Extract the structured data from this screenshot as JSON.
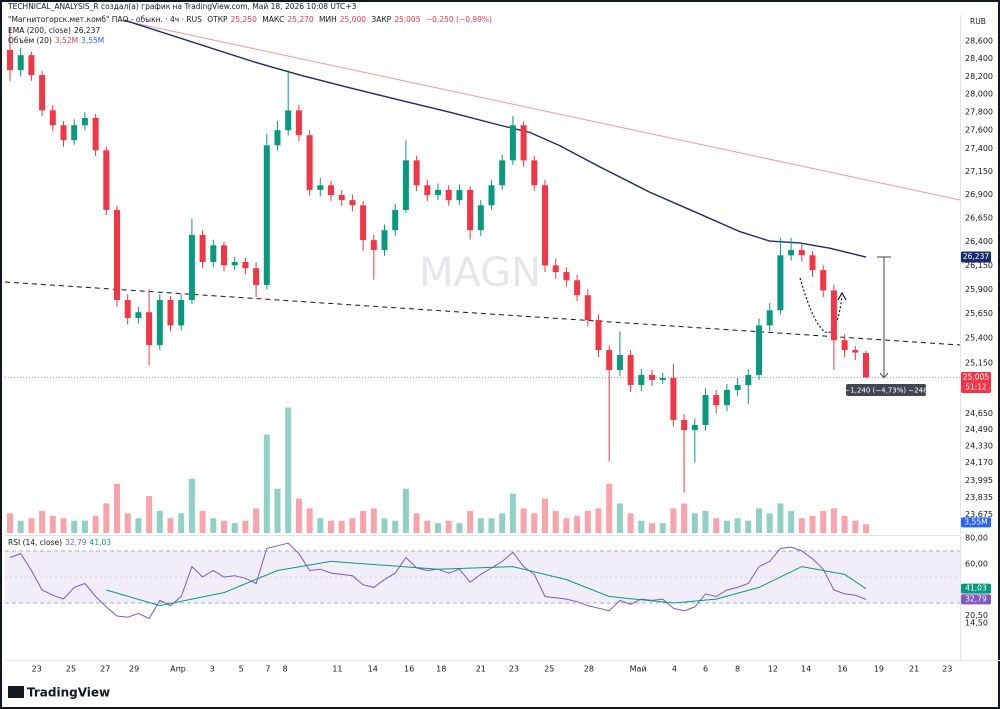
{
  "header": {
    "credit": "TECHNICAL_ANALYSIS_R создал(а) график на TradingView.com, Май 18, 2026 10:08 UTC+3",
    "symbol": "\"Магнитогорск.мет.комб\" ПАО - обыкн. · 4ч · RUS",
    "open_label": "ОТКР",
    "open": "25,250",
    "high_label": "МАКС",
    "high": "25,270",
    "low_label": "МИН",
    "low": "25,000",
    "close_label": "ЗАКР",
    "close": "25,005",
    "change": "−0,250 (−0,99%)",
    "currency": "RUB",
    "countdown": "51:12",
    "measure": "−1,240 (−4,73%) −248",
    "watermark": "MAGN",
    "logo": "TradingView"
  },
  "chart_data": {
    "type": "candlestick",
    "log_scale": true,
    "grid": false,
    "up_color": "#089981",
    "down_color": "#f23645",
    "ylim": [
      23.48,
      28.9
    ],
    "yticks": [
      {
        "value": 28.6,
        "label": "28,600"
      },
      {
        "value": 28.4,
        "label": "28,400"
      },
      {
        "value": 28.2,
        "label": "28,200"
      },
      {
        "value": 28.0,
        "label": "28,000"
      },
      {
        "value": 27.8,
        "label": "27,800"
      },
      {
        "value": 27.6,
        "label": "27,600"
      },
      {
        "value": 27.4,
        "label": "27,400"
      },
      {
        "value": 27.15,
        "label": "27,150"
      },
      {
        "value": 26.9,
        "label": "26,900"
      },
      {
        "value": 26.65,
        "label": "26,650"
      },
      {
        "value": 26.4,
        "label": "26,400"
      },
      {
        "value": 26.15,
        "label": "26,150"
      },
      {
        "value": 25.9,
        "label": "25,900"
      },
      {
        "value": 25.65,
        "label": "25,650"
      },
      {
        "value": 25.4,
        "label": "25,400"
      },
      {
        "value": 25.15,
        "label": "25,150"
      },
      {
        "value": 24.65,
        "label": "24,650"
      },
      {
        "value": 24.49,
        "label": "24,490"
      },
      {
        "value": 24.33,
        "label": "24,330"
      },
      {
        "value": 24.17,
        "label": "24,170"
      },
      {
        "value": 23.995,
        "label": "23,995"
      },
      {
        "value": 23.835,
        "label": "23,835"
      },
      {
        "value": 23.675,
        "label": "23,675"
      }
    ],
    "xticks": [
      {
        "value": 2.5,
        "label": "23"
      },
      {
        "value": 5.7,
        "label": "25"
      },
      {
        "value": 8.9,
        "label": "27"
      },
      {
        "value": 11.6,
        "label": "29"
      },
      {
        "value": 15.7,
        "label": "Апр"
      },
      {
        "value": 18.9,
        "label": "3"
      },
      {
        "value": 21.6,
        "label": "5"
      },
      {
        "value": 24.1,
        "label": "7"
      },
      {
        "value": 25.7,
        "label": "8"
      },
      {
        "value": 30.6,
        "label": "11"
      },
      {
        "value": 33.9,
        "label": "14"
      },
      {
        "value": 37.3,
        "label": "16"
      },
      {
        "value": 40.3,
        "label": "18"
      },
      {
        "value": 44,
        "label": "21"
      },
      {
        "value": 47.1,
        "label": "23"
      },
      {
        "value": 50.4,
        "label": "25"
      },
      {
        "value": 54.1,
        "label": "28"
      },
      {
        "value": 58.7,
        "label": "Май"
      },
      {
        "value": 62.1,
        "label": "4"
      },
      {
        "value": 65,
        "label": "6"
      },
      {
        "value": 68,
        "label": "8"
      },
      {
        "value": 71.3,
        "label": "12"
      },
      {
        "value": 74.4,
        "label": "14"
      },
      {
        "value": 77.8,
        "label": "16"
      },
      {
        "value": 81.2,
        "label": "19"
      },
      {
        "value": 84.5,
        "label": "21"
      },
      {
        "value": 87.6,
        "label": "23"
      }
    ],
    "ohlc": {
      "open": [
        28.5,
        28.27,
        28.44,
        28.215,
        27.82,
        27.655,
        27.49,
        27.655,
        27.735,
        27.38,
        26.735,
        25.79,
        25.605,
        25.665,
        25.33,
        25.79,
        25.53,
        25.79,
        26.47,
        26.185,
        26.36,
        26.15,
        26.185,
        26.12,
        25.945,
        27.435,
        27.6,
        27.82,
        27.545,
        26.95,
        27.0,
        26.895,
        26.84,
        26.785,
        26.415,
        26.31,
        26.52,
        26.735,
        27.27,
        27.0,
        26.895,
        26.95,
        26.84,
        26.95,
        26.52,
        26.785,
        27.0,
        27.27,
        27.655,
        27.27,
        27.0,
        26.15,
        26.08,
        25.995,
        25.84,
        25.585,
        25.28,
        25.08,
        25.23,
        24.93,
        25.03,
        24.98,
        25.0,
        24.585,
        24.485,
        24.535,
        24.83,
        24.73,
        24.88,
        24.93,
        25.03,
        25.53,
        25.685,
        26.255,
        26.31,
        26.255,
        26.1,
        25.89,
        25.38,
        25.28,
        25.25
      ],
      "high": [
        28.75,
        28.52,
        28.48,
        28.26,
        27.88,
        27.7,
        27.72,
        27.8,
        27.78,
        27.42,
        26.78,
        25.85,
        25.72,
        25.9,
        25.85,
        25.83,
        25.85,
        26.64,
        26.52,
        26.42,
        26.4,
        26.24,
        26.23,
        26.18,
        27.56,
        27.7,
        28.27,
        27.88,
        27.6,
        27.08,
        27.05,
        26.95,
        26.9,
        26.83,
        26.47,
        26.58,
        26.8,
        27.49,
        27.32,
        27.06,
        27.02,
        27.0,
        27.01,
        26.99,
        26.84,
        27.06,
        27.33,
        27.76,
        27.7,
        27.32,
        27.06,
        26.22,
        26.13,
        26.05,
        25.9,
        25.64,
        25.33,
        25.47,
        25.28,
        25.09,
        25.08,
        25.05,
        25.14,
        24.64,
        24.6,
        24.9,
        24.88,
        24.94,
        25.0,
        25.09,
        25.6,
        25.76,
        26.44,
        26.44,
        26.38,
        26.3,
        26.15,
        25.95,
        25.44,
        25.32,
        25.27
      ],
      "low": [
        28.15,
        28.2,
        28.15,
        27.76,
        27.59,
        27.42,
        27.44,
        27.6,
        27.32,
        26.68,
        25.72,
        25.54,
        25.55,
        25.13,
        25.28,
        25.47,
        25.48,
        25.75,
        26.12,
        26.13,
        26.09,
        26.1,
        26.06,
        25.82,
        25.9,
        27.38,
        27.54,
        27.48,
        26.89,
        26.88,
        26.83,
        26.78,
        26.72,
        26.3,
        26.0,
        26.25,
        26.46,
        26.7,
        26.94,
        26.83,
        26.84,
        26.78,
        26.79,
        26.42,
        26.46,
        26.74,
        26.95,
        27.22,
        27.2,
        26.94,
        26.08,
        26.01,
        25.93,
        25.78,
        25.52,
        25.21,
        24.18,
        25.02,
        24.86,
        24.87,
        24.92,
        24.94,
        24.52,
        23.88,
        24.17,
        24.48,
        24.65,
        24.67,
        24.82,
        24.74,
        24.98,
        25.47,
        25.64,
        26.2,
        26.19,
        26.03,
        25.82,
        25.08,
        25.21,
        25.18,
        25.0
      ],
      "close": [
        28.27,
        28.44,
        28.215,
        27.82,
        27.655,
        27.49,
        27.655,
        27.735,
        27.38,
        26.735,
        25.79,
        25.605,
        25.665,
        25.33,
        25.79,
        25.53,
        25.79,
        26.47,
        26.185,
        26.36,
        26.15,
        26.185,
        26.12,
        25.945,
        27.435,
        27.6,
        27.82,
        27.545,
        26.95,
        27.0,
        26.895,
        26.84,
        26.785,
        26.415,
        26.31,
        26.52,
        26.735,
        27.27,
        27.0,
        26.895,
        26.95,
        26.84,
        26.95,
        26.52,
        26.785,
        27.0,
        27.27,
        27.655,
        27.27,
        27.0,
        26.15,
        26.08,
        25.995,
        25.84,
        25.585,
        25.28,
        25.08,
        25.23,
        24.93,
        25.03,
        24.98,
        25.0,
        24.585,
        24.485,
        24.535,
        24.83,
        24.73,
        24.88,
        24.93,
        25.03,
        25.53,
        25.685,
        26.255,
        26.31,
        26.255,
        26.1,
        25.89,
        25.38,
        25.28,
        25.255,
        25.005
      ]
    },
    "ema": {
      "name": "EMA (200, close)",
      "color": "#1e2a6e",
      "value_label": "26,237",
      "x": [
        10.7,
        22.9,
        27.1,
        31.8,
        36.4,
        41.1,
        45.8,
        48.6,
        51.4,
        55.1,
        59.8,
        64.5,
        68.2,
        71,
        73.8,
        76.6,
        80
      ],
      "values": [
        28.84,
        28.36,
        28.215,
        28.07,
        27.935,
        27.8,
        27.655,
        27.575,
        27.43,
        27.2,
        26.925,
        26.69,
        26.505,
        26.405,
        26.385,
        26.33,
        26.237
      ]
    },
    "volume": {
      "name": "Объём (20)",
      "last_label": "3,52M",
      "ma_label": "3,55M",
      "ma_color": "#2962ff",
      "up_color": "rgba(8,153,129,0.45)",
      "down_color": "rgba(242,54,69,0.45)",
      "ylim": [
        0,
        52
      ],
      "values": [
        8,
        5,
        6,
        9,
        7,
        6,
        5,
        5,
        7,
        12,
        20,
        8,
        6,
        15,
        9,
        6,
        8,
        22,
        9,
        6,
        5,
        4,
        5,
        10,
        40,
        18,
        51,
        14,
        10,
        6,
        5,
        5,
        6,
        9,
        10,
        6,
        5,
        18,
        8,
        5,
        4,
        5,
        4,
        9,
        6,
        6,
        8,
        16,
        10,
        8,
        14,
        9,
        6,
        7,
        9,
        10,
        20,
        12,
        8,
        5,
        4,
        4,
        10,
        12,
        8,
        9,
        6,
        5,
        6,
        5,
        10,
        8,
        12,
        9,
        6,
        7,
        9,
        10,
        7,
        5,
        3.52
      ]
    },
    "rsi": {
      "name": "RSI (14, close)",
      "color": "#7e57c2",
      "value_label": "32,79",
      "ylim": [
        -13.85,
        80.77
      ],
      "yticks": [
        {
          "value": 80,
          "label": "80,00"
        },
        {
          "value": 60,
          "label": "60,00"
        },
        {
          "value": 20.5,
          "label": "20,50"
        },
        {
          "value": 14.5,
          "label": "14,50"
        }
      ],
      "values": [
        65,
        68,
        55,
        40,
        36,
        33,
        42,
        45,
        35,
        27,
        20,
        19,
        22,
        18,
        32,
        28,
        35,
        58,
        50,
        55,
        50,
        51,
        49,
        45,
        72,
        74,
        76,
        68,
        55,
        56,
        53,
        52,
        51,
        44,
        42,
        48,
        53,
        65,
        57,
        55,
        56,
        53,
        56,
        46,
        52,
        57,
        62,
        69,
        58,
        52,
        35,
        34,
        33,
        31,
        28,
        26,
        24,
        32,
        29,
        33,
        32,
        33,
        26,
        24,
        27,
        37,
        35,
        40,
        42,
        45,
        58,
        62,
        72,
        73,
        70,
        64,
        56,
        40,
        37,
        36,
        32.79
      ],
      "ma": {
        "color": "#089981",
        "value_label": "41,03",
        "x": [
          9,
          14,
          20,
          25,
          30,
          40,
          47,
          52,
          56,
          62,
          66,
          70,
          74,
          78,
          80
        ],
        "values": [
          40,
          28,
          38,
          55,
          62,
          56,
          58,
          48,
          35,
          30,
          33,
          42,
          58,
          52,
          41.03
        ]
      }
    }
  }
}
